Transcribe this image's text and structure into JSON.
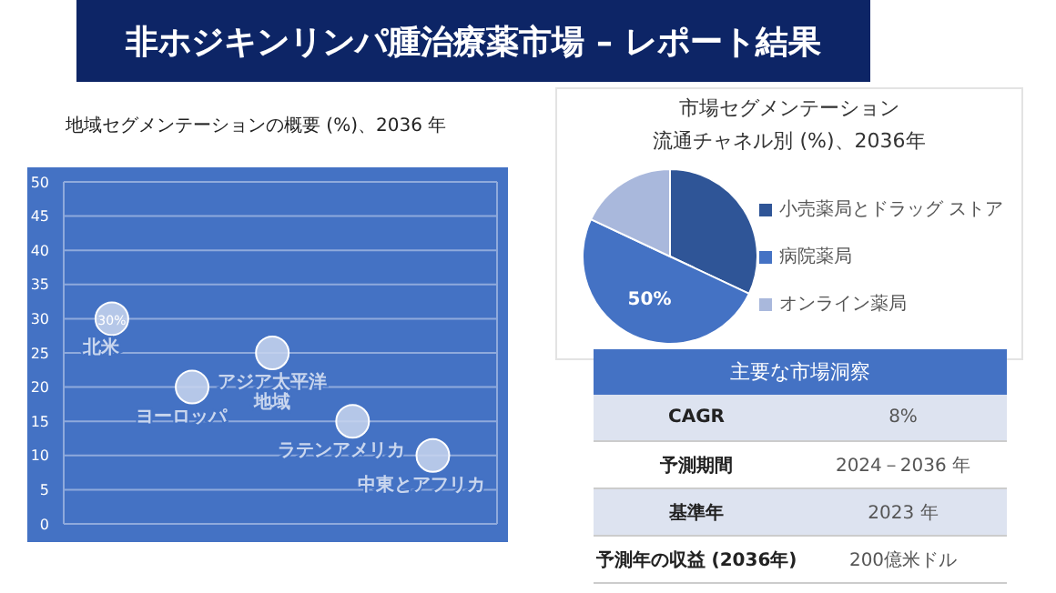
{
  "chart_data": [
    {
      "type": "other",
      "title": "非ホジキンリンパ腫治療薬市場 – レポート結果"
    },
    {
      "type": "scatter",
      "title": "地域セグメンテーションの概要 (%)、2036 年",
      "categories": [
        null,
        null,
        null,
        null,
        null
      ],
      "series": [
        {
          "name": "北米",
          "color": "#c9d6ee",
          "values": [
            30,
            null,
            null,
            null,
            null
          ],
          "value_labels": [
            "30%",
            null,
            null,
            null,
            null
          ]
        },
        {
          "name": "ヨーロッパ",
          "color": "#c9d6ee",
          "values": [
            null,
            20,
            null,
            null,
            null
          ]
        },
        {
          "name": "アジア太平洋地域",
          "color": "#c9d6ee",
          "values": [
            null,
            null,
            25,
            null,
            null
          ]
        },
        {
          "name": "ラテンアメリカ",
          "color": "#c9d6ee",
          "values": [
            null,
            null,
            null,
            15,
            null
          ]
        },
        {
          "name": "中東とアフリカ",
          "color": "#c9d6ee",
          "values": [
            null,
            null,
            null,
            null,
            10
          ]
        }
      ],
      "ylim": [
        0,
        50
      ],
      "yticks": [
        0,
        5,
        10,
        15,
        20,
        25,
        30,
        35,
        40,
        45,
        50
      ],
      "grid": true,
      "tick_labels": "y",
      "marker": "circle"
    },
    {
      "type": "pie",
      "title": "市場セグメンテーション",
      "subtitle": "流通チャネル別 (%)、2036年",
      "categories": [
        "小売薬局とドラッグ ストア",
        "病院薬局",
        "オンライン薬局"
      ],
      "values": [
        32,
        50,
        18
      ],
      "colors": [
        "#2f5597",
        "#4472c4",
        "#a9b8dc"
      ],
      "value_labels": [
        null,
        "50%",
        null
      ],
      "legend": "right"
    },
    {
      "type": "other",
      "title": "主要な市場洞察",
      "annotations": [
        "CAGR",
        "8%",
        "予測期間",
        "2024－2036 年",
        "基準年",
        "2023 年",
        "予測年の収益 (2036年)",
        "200億米ドル"
      ]
    }
  ]
}
